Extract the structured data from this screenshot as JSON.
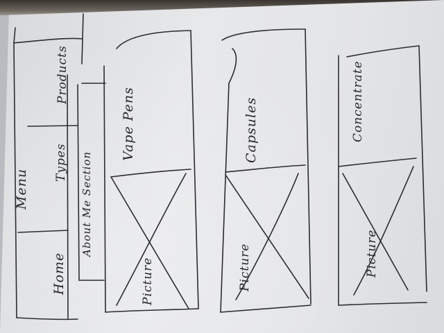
{
  "sketch": {
    "nav": {
      "home": "Home",
      "menu": "Menu",
      "products": "Products"
    },
    "types_label": "Types",
    "about_label": "About Me Section",
    "cards": [
      {
        "title": "Vape Pens",
        "picture": "Picture"
      },
      {
        "title": "Capsules",
        "picture": "Picture"
      },
      {
        "title": "Concentrate",
        "picture": "Picture"
      }
    ]
  }
}
